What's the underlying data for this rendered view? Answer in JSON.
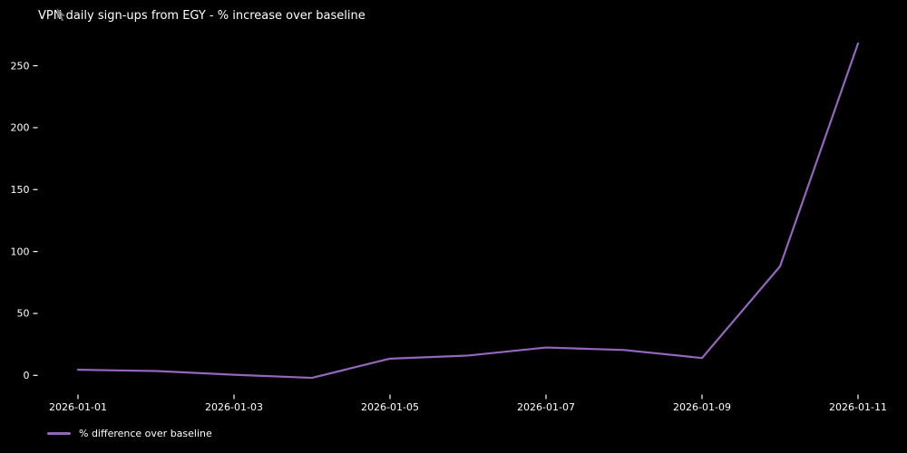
{
  "chart_data": {
    "type": "line",
    "title": "VPN daily sign-ups from EGY - % increase over baseline",
    "x": [
      "2026-01-01",
      "2026-01-02",
      "2026-01-03",
      "2026-01-04",
      "2026-01-05",
      "2026-01-06",
      "2026-01-07",
      "2026-01-08",
      "2026-01-09",
      "2026-01-10",
      "2026-01-11"
    ],
    "series": [
      {
        "name": "% difference over baseline",
        "color": "#9467bd",
        "values": [
          4.5,
          3.5,
          0.5,
          -2,
          13.5,
          16,
          22.5,
          20.5,
          14,
          88,
          268
        ]
      }
    ],
    "xlabel": "",
    "ylabel": "",
    "yticks": [
      0,
      50,
      100,
      150,
      200,
      250
    ],
    "xticks": [
      "2026-01-01",
      "2026-01-03",
      "2026-01-05",
      "2026-01-07",
      "2026-01-09",
      "2026-01-11"
    ],
    "ylim": [
      -15.5,
      281.5
    ],
    "grid": false,
    "legend": {
      "position": "lower-left-outside",
      "entries": [
        "% difference over baseline"
      ]
    },
    "background": "#000000",
    "text_color": "#ffffff"
  }
}
